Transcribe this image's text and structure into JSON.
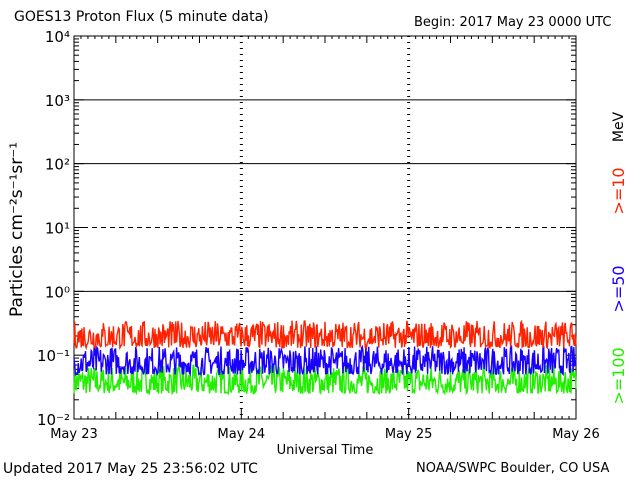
{
  "header": {
    "title": "GOES13 Proton Flux (5 minute data)",
    "begin": "Begin: 2017 May 23 0000 UTC"
  },
  "footer": {
    "updated": "Updated 2017 May 25 23:56:02 UTC",
    "source": "NOAA/SWPC Boulder, CO USA"
  },
  "chart_data": {
    "type": "line",
    "title": "GOES13 Proton Flux (5 minute data)",
    "xlabel": "Universal Time",
    "ylabel": "Particles cm⁻²s⁻¹sr⁻¹",
    "yscale": "log",
    "ylim": [
      0.01,
      10000
    ],
    "yticks": [
      {
        "value": 0.01,
        "label": "10⁻²"
      },
      {
        "value": 0.1,
        "label": "10⁻¹"
      },
      {
        "value": 1,
        "label": "10⁰"
      },
      {
        "value": 10,
        "label": "10¹"
      },
      {
        "value": 100,
        "label": "10²"
      },
      {
        "value": 1000,
        "label": "10³"
      },
      {
        "value": 10000,
        "label": "10⁴"
      }
    ],
    "xlim": [
      "2017-05-23",
      "2017-05-26"
    ],
    "xticks": [
      "May 23",
      "May 24",
      "May 25",
      "May 26"
    ],
    "threshold_lines": [
      {
        "value": 1,
        "style": "solid"
      },
      {
        "value": 10,
        "style": "dashed"
      },
      {
        "value": 100,
        "style": "solid"
      },
      {
        "value": 1000,
        "style": "solid"
      }
    ],
    "unit_label": "MeV",
    "series": [
      {
        "name": ">=10",
        "color": "#ff2200",
        "typical_range": [
          0.13,
          0.35
        ]
      },
      {
        "name": ">=50",
        "color": "#1a00ff",
        "typical_range": [
          0.05,
          0.14
        ]
      },
      {
        "name": ">=100",
        "color": "#22ee00",
        "typical_range": [
          0.025,
          0.07
        ]
      }
    ]
  }
}
